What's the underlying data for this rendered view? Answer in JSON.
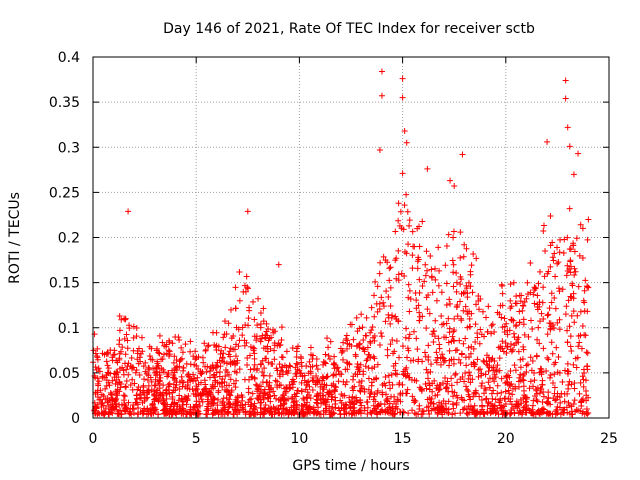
{
  "chart_data": {
    "type": "scatter",
    "title": "Day 146 of 2021, Rate Of TEC Index for receiver sctb",
    "xlabel": "GPS time / hours",
    "ylabel": "ROTI / TECUs",
    "xlim": [
      0,
      25
    ],
    "ylim": [
      0,
      0.4
    ],
    "x_ticks": [
      "0",
      "5",
      "10",
      "15",
      "20",
      "25"
    ],
    "y_ticks": [
      "0",
      "0.05",
      "0.1",
      "0.15",
      "0.2",
      "0.25",
      "0.3",
      "0.35",
      "0.4"
    ],
    "grid": true,
    "marker": "plus",
    "color": "#ff0000",
    "density_profile": {
      "x": [
        0,
        0.5,
        1,
        1.5,
        2,
        3,
        4,
        5,
        6,
        6.8,
        7.3,
        7.8,
        8.5,
        9,
        9.5,
        10,
        11,
        12,
        13,
        13.5,
        14,
        14.5,
        15,
        15.5,
        16,
        16.5,
        17,
        17.5,
        18,
        18.5,
        19,
        19.5,
        20,
        20.5,
        21,
        21.5,
        22,
        22.5,
        23,
        23.5,
        24
      ],
      "upper": [
        0.1,
        0.09,
        0.09,
        0.14,
        0.11,
        0.09,
        0.1,
        0.1,
        0.11,
        0.14,
        0.22,
        0.15,
        0.12,
        0.13,
        0.08,
        0.1,
        0.09,
        0.1,
        0.13,
        0.17,
        0.24,
        0.22,
        0.3,
        0.25,
        0.24,
        0.23,
        0.22,
        0.23,
        0.24,
        0.22,
        0.15,
        0.16,
        0.16,
        0.17,
        0.16,
        0.2,
        0.24,
        0.25,
        0.29,
        0.28,
        0.2
      ]
    },
    "notable_points": [
      {
        "x": 1.7,
        "y": 0.229
      },
      {
        "x": 7.5,
        "y": 0.229
      },
      {
        "x": 9.0,
        "y": 0.17
      },
      {
        "x": 14.0,
        "y": 0.384
      },
      {
        "x": 14.0,
        "y": 0.357
      },
      {
        "x": 13.9,
        "y": 0.297
      },
      {
        "x": 15.0,
        "y": 0.376
      },
      {
        "x": 15.0,
        "y": 0.355
      },
      {
        "x": 15.1,
        "y": 0.318
      },
      {
        "x": 15.2,
        "y": 0.305
      },
      {
        "x": 15.0,
        "y": 0.271
      },
      {
        "x": 16.2,
        "y": 0.276
      },
      {
        "x": 17.3,
        "y": 0.263
      },
      {
        "x": 17.5,
        "y": 0.257
      },
      {
        "x": 17.9,
        "y": 0.292
      },
      {
        "x": 22.9,
        "y": 0.374
      },
      {
        "x": 22.9,
        "y": 0.354
      },
      {
        "x": 23.0,
        "y": 0.322
      },
      {
        "x": 22.0,
        "y": 0.306
      },
      {
        "x": 23.1,
        "y": 0.301
      },
      {
        "x": 23.5,
        "y": 0.293
      },
      {
        "x": 23.3,
        "y": 0.27
      },
      {
        "x": 24.0,
        "y": 0.22
      }
    ]
  }
}
